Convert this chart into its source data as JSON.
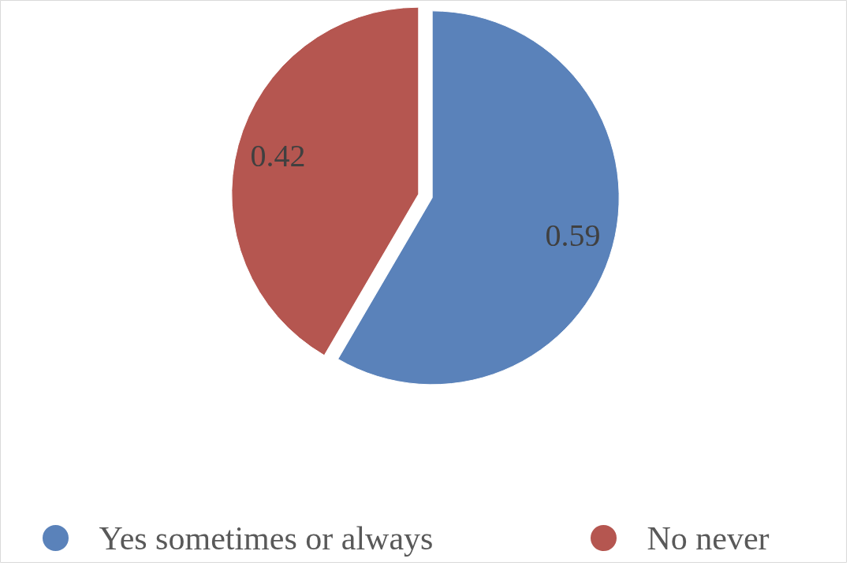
{
  "chart_data": {
    "type": "pie",
    "categories": [
      "Yes sometimes or always",
      "No never"
    ],
    "values": [
      0.59,
      0.42
    ],
    "colors": [
      "#5a82ba",
      "#b55650"
    ],
    "data_labels": true,
    "legend": "bottom"
  }
}
